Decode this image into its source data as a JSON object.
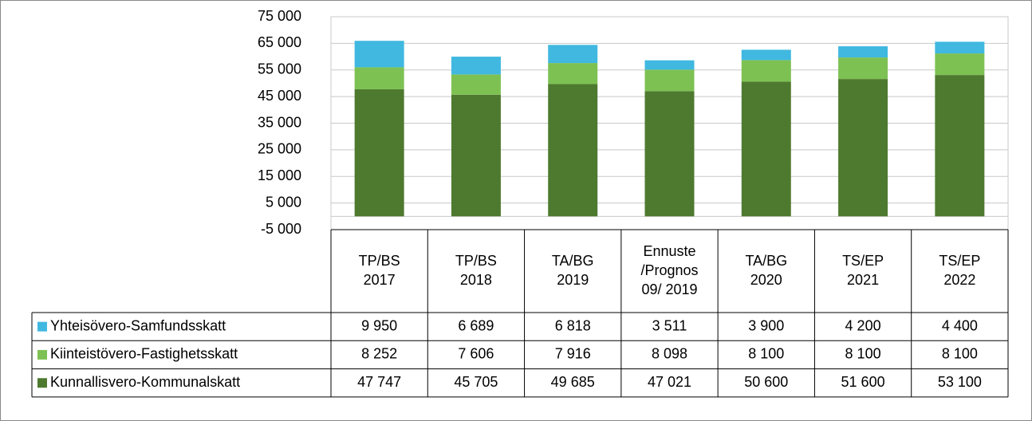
{
  "chart_data": {
    "type": "stacked_bar",
    "categories": [
      [
        "TP/BS",
        "2017"
      ],
      [
        "TP/BS",
        "2018"
      ],
      [
        "TA/BG",
        "2019"
      ],
      [
        "Ennuste",
        "/Prognos",
        "09/ 2019"
      ],
      [
        "TA/BG",
        "2020"
      ],
      [
        "TS/EP",
        "2021"
      ],
      [
        "TS/EP",
        "2022"
      ]
    ],
    "series": [
      {
        "name": "Yhteisövero-Samfundsskatt",
        "color": "#40b8e0",
        "values": [
          9950,
          6689,
          6818,
          3511,
          3900,
          4200,
          4400
        ],
        "value_labels": [
          "9 950",
          "6 689",
          "6 818",
          "3 511",
          "3 900",
          "4 200",
          "4 400"
        ]
      },
      {
        "name": "Kiinteistövero-Fastighetsskatt",
        "color": "#7dc153",
        "values": [
          8252,
          7606,
          7916,
          8098,
          8100,
          8100,
          8100
        ],
        "value_labels": [
          "8 252",
          "7 606",
          "7 916",
          "8 098",
          "8 100",
          "8 100",
          "8 100"
        ]
      },
      {
        "name": "Kunnallisvero-Kommunalskatt",
        "color": "#4e7a2f",
        "values": [
          47747,
          45705,
          49685,
          47021,
          50600,
          51600,
          53100
        ],
        "value_labels": [
          "47 747",
          "45 705",
          "49 685",
          "47 021",
          "50 600",
          "51 600",
          "53 100"
        ]
      }
    ],
    "ylim": [
      -5000,
      75000
    ],
    "yticks": [
      {
        "value": -5000,
        "label": "-5 000"
      },
      {
        "value": 5000,
        "label": "5 000"
      },
      {
        "value": 15000,
        "label": "15 000"
      },
      {
        "value": 25000,
        "label": "25 000"
      },
      {
        "value": 35000,
        "label": "35 000"
      },
      {
        "value": 45000,
        "label": "45 000"
      },
      {
        "value": 55000,
        "label": "55 000"
      },
      {
        "value": 65000,
        "label": "65 000"
      },
      {
        "value": 75000,
        "label": "75 000"
      }
    ],
    "grid": true
  }
}
